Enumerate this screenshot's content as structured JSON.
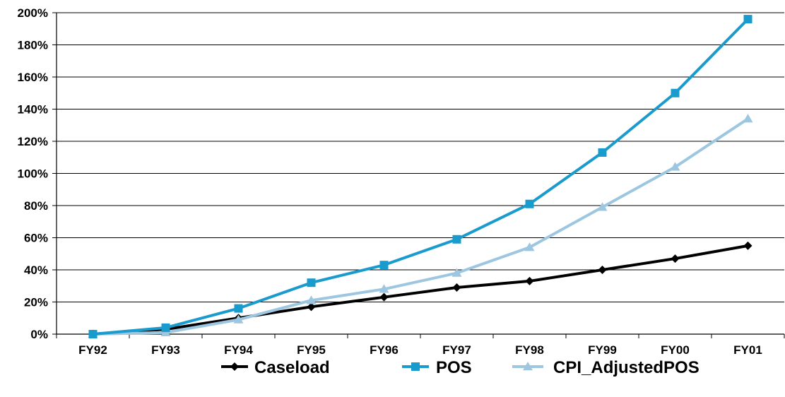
{
  "chart_data": {
    "type": "line",
    "categories": [
      "FY92",
      "FY93",
      "FY94",
      "FY95",
      "FY96",
      "FY97",
      "FY98",
      "FY99",
      "FY00",
      "FY01"
    ],
    "series": [
      {
        "name": "Caseload",
        "color": "#000000",
        "marker": "diamond",
        "values": [
          0,
          3,
          10,
          17,
          23,
          29,
          33,
          40,
          47,
          55
        ]
      },
      {
        "name": "POS",
        "color": "#1a9bcd",
        "marker": "square",
        "values": [
          0,
          4,
          16,
          32,
          43,
          59,
          81,
          113,
          150,
          196
        ]
      },
      {
        "name": "CPI_AdjustedPOS",
        "color": "#9dc6e0",
        "marker": "triangle",
        "values": [
          0,
          1,
          9,
          21,
          28,
          38,
          54,
          79,
          104,
          134
        ]
      }
    ],
    "yticks": [
      "0%",
      "20%",
      "40%",
      "60%",
      "80%",
      "100%",
      "120%",
      "140%",
      "160%",
      "180%",
      "200%"
    ],
    "ylim": [
      0,
      200
    ],
    "title": "",
    "xlabel": "",
    "ylabel": "",
    "grid": "horizontal",
    "legend_position": "bottom"
  }
}
